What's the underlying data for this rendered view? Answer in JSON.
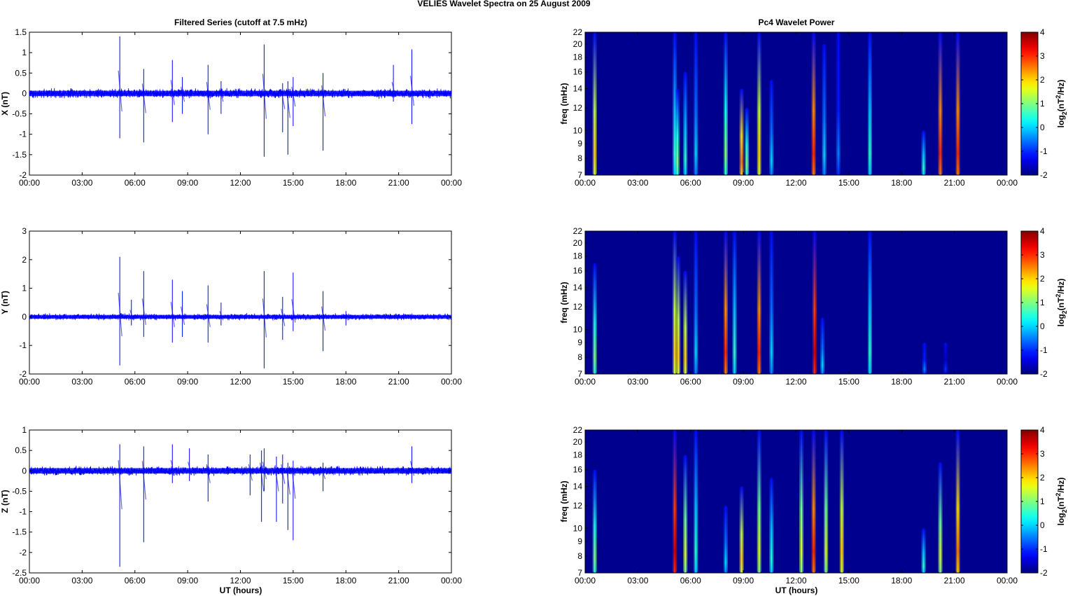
{
  "chart_data": {
    "title": "VELIES Wavelet Spectra on 25 August    2009",
    "left_title": "Filtered Series (cutoff at 7.5 mHz)",
    "right_title": "Pc4 Wavelet Power",
    "xlabel": "UT (hours)",
    "x_range_hours": [
      0,
      24
    ],
    "x_tick_labels": [
      "00:00",
      "03:00",
      "06:00",
      "09:00",
      "12:00",
      "15:00",
      "18:00",
      "21:00",
      "00:00"
    ],
    "colors": {
      "series": "#0000ff",
      "background_power": "#00008f"
    },
    "time_series": [
      {
        "type": "line",
        "component": "X",
        "ylabel": "X (nT)",
        "ylim": [
          -2,
          1.5
        ],
        "yticks": [
          1.5,
          1,
          0.5,
          0,
          -0.5,
          -1,
          -1.5,
          -2
        ],
        "noise_amplitude": 0.12,
        "spikes": [
          [
            5.14,
            1.4,
            -1.1
          ],
          [
            6.5,
            0.6,
            -1.2
          ],
          [
            8.13,
            0.82,
            -0.7
          ],
          [
            8.7,
            0.4,
            -0.5
          ],
          [
            10.16,
            0.7,
            -1.0
          ],
          [
            10.9,
            0.3,
            -0.5
          ],
          [
            13.35,
            1.2,
            -1.55
          ],
          [
            14.4,
            0.25,
            -0.95
          ],
          [
            14.7,
            0.3,
            -1.5
          ],
          [
            15.0,
            0.4,
            -0.8
          ],
          [
            16.7,
            0.5,
            -1.4
          ],
          [
            20.7,
            0.7,
            -0.2
          ],
          [
            21.75,
            1.08,
            -0.75
          ]
        ]
      },
      {
        "type": "line",
        "component": "Y",
        "ylabel": "Y (nT)",
        "ylim": [
          -2,
          3
        ],
        "yticks": [
          3,
          2,
          1,
          0,
          -1,
          -2
        ],
        "noise_amplitude": 0.12,
        "spikes": [
          [
            5.14,
            2.1,
            -1.7
          ],
          [
            5.8,
            0.6,
            -0.3
          ],
          [
            6.5,
            1.6,
            -0.7
          ],
          [
            8.13,
            1.3,
            -0.9
          ],
          [
            8.7,
            0.9,
            -0.7
          ],
          [
            10.16,
            1.1,
            -0.9
          ],
          [
            10.9,
            0.5,
            -0.3
          ],
          [
            13.35,
            1.6,
            -1.8
          ],
          [
            14.4,
            0.7,
            -0.8
          ],
          [
            15.0,
            1.55,
            -0.5
          ],
          [
            16.7,
            0.9,
            -1.2
          ],
          [
            18.0,
            0.2,
            -0.3
          ]
        ]
      },
      {
        "type": "line",
        "component": "Z",
        "ylabel": "Z (nT)",
        "ylim": [
          -2.5,
          1
        ],
        "yticks": [
          1,
          0.5,
          0,
          -0.5,
          -1,
          -1.5,
          -2,
          -2.5
        ],
        "noise_amplitude": 0.12,
        "spikes": [
          [
            5.14,
            0.65,
            -2.35
          ],
          [
            6.5,
            0.6,
            -1.75
          ],
          [
            8.13,
            0.65,
            -0.3
          ],
          [
            9.1,
            0.55,
            -0.25
          ],
          [
            10.16,
            0.4,
            -0.75
          ],
          [
            12.55,
            0.4,
            -0.6
          ],
          [
            13.2,
            0.5,
            -1.25
          ],
          [
            13.35,
            0.55,
            -0.5
          ],
          [
            14.05,
            0.35,
            -1.25
          ],
          [
            14.4,
            0.4,
            -0.8
          ],
          [
            14.7,
            0.2,
            -1.45
          ],
          [
            15.0,
            0.25,
            -1.7
          ],
          [
            16.7,
            0.2,
            -0.5
          ],
          [
            21.75,
            0.6,
            -0.3
          ]
        ]
      }
    ],
    "spectrograms": [
      {
        "type": "heatmap",
        "ylabel": "freq (mHz)",
        "ylim": [
          7,
          22
        ],
        "yscale": "log",
        "yticks": [
          22,
          20,
          18,
          16,
          14,
          12,
          10,
          9,
          8,
          7
        ],
        "colorbar": {
          "label": "log2(nT^2/Hz)",
          "range": [
            -2,
            4
          ],
          "ticks": [
            4,
            3,
            2,
            1,
            0,
            -1,
            -2
          ]
        },
        "events": [
          [
            0.55,
            2,
            22
          ],
          [
            5.1,
            0.5,
            22
          ],
          [
            5.25,
            1,
            14
          ],
          [
            5.7,
            0.5,
            16
          ],
          [
            6.3,
            0,
            22
          ],
          [
            8.0,
            1,
            22
          ],
          [
            8.9,
            2.5,
            14
          ],
          [
            9.2,
            1,
            12
          ],
          [
            9.9,
            2,
            22
          ],
          [
            10.6,
            0,
            15
          ],
          [
            13.0,
            3,
            22
          ],
          [
            13.6,
            0,
            20
          ],
          [
            14.4,
            -0.5,
            22
          ],
          [
            16.2,
            0.5,
            22
          ],
          [
            19.25,
            0.5,
            10
          ],
          [
            20.2,
            3,
            22
          ],
          [
            21.2,
            3,
            22
          ]
        ]
      },
      {
        "type": "heatmap",
        "ylabel": "freq (mHz)",
        "ylim": [
          7,
          22
        ],
        "yscale": "log",
        "yticks": [
          22,
          20,
          18,
          16,
          14,
          12,
          10,
          9,
          8,
          7
        ],
        "colorbar": {
          "label": "log2(nT^2/Hz)",
          "range": [
            -2,
            4
          ],
          "ticks": [
            4,
            3,
            2,
            1,
            0,
            -1,
            -2
          ]
        },
        "events": [
          [
            0.55,
            1,
            17
          ],
          [
            5.1,
            2,
            22
          ],
          [
            5.3,
            2,
            18
          ],
          [
            5.7,
            2,
            16
          ],
          [
            6.3,
            0,
            22
          ],
          [
            8.0,
            3,
            22
          ],
          [
            8.5,
            0.5,
            22
          ],
          [
            9.9,
            3,
            22
          ],
          [
            10.6,
            0,
            22
          ],
          [
            13.05,
            3.5,
            22
          ],
          [
            13.5,
            0,
            11
          ],
          [
            16.2,
            0.5,
            22
          ],
          [
            19.3,
            -0.5,
            9
          ],
          [
            20.5,
            -1,
            9
          ]
        ]
      },
      {
        "type": "heatmap",
        "ylabel": "freq (mHz)",
        "ylim": [
          7,
          22
        ],
        "yscale": "log",
        "yticks": [
          22,
          20,
          18,
          16,
          14,
          12,
          10,
          9,
          8,
          7
        ],
        "colorbar": {
          "label": "log2(nT^2/Hz)",
          "range": [
            -2,
            4
          ],
          "ticks": [
            4,
            3,
            2,
            1,
            0,
            -1,
            -2
          ]
        },
        "events": [
          [
            0.55,
            1,
            16
          ],
          [
            5.1,
            3.5,
            22
          ],
          [
            5.7,
            1.5,
            18
          ],
          [
            6.3,
            0.5,
            22
          ],
          [
            8.0,
            0,
            12
          ],
          [
            8.9,
            2,
            14
          ],
          [
            9.9,
            1.5,
            22
          ],
          [
            10.6,
            0.5,
            15
          ],
          [
            12.3,
            1.5,
            22
          ],
          [
            13.0,
            3,
            22
          ],
          [
            13.7,
            1.5,
            22
          ],
          [
            14.6,
            2,
            22
          ],
          [
            19.25,
            0.5,
            10
          ],
          [
            20.2,
            1.5,
            17
          ],
          [
            21.2,
            2.5,
            22
          ]
        ]
      }
    ]
  }
}
